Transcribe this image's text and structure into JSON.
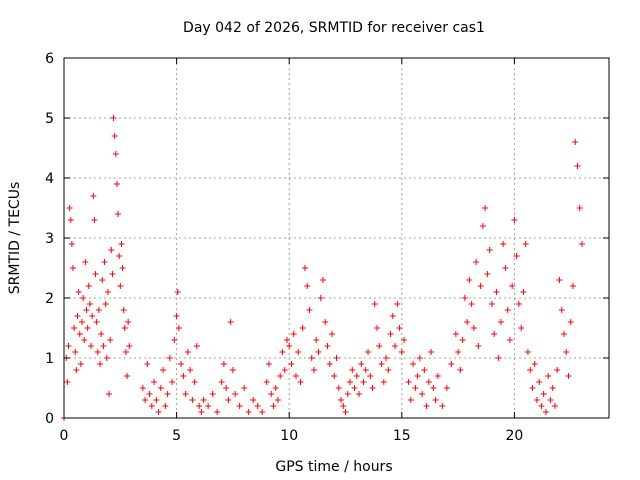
{
  "chart_data": {
    "type": "scatter",
    "title": "Day 042 of 2026, SRMTID for receiver cas1",
    "xlabel": "GPS time / hours",
    "ylabel": "SRMTID / TECUs",
    "xlim": [
      0,
      24.2
    ],
    "ylim": [
      0,
      6
    ],
    "xticks": [
      0,
      5,
      10,
      15,
      20
    ],
    "xtick_labels": [
      "0",
      "5",
      "10",
      "15",
      "20"
    ],
    "yticks": [
      0,
      1,
      2,
      3,
      4,
      5,
      6
    ],
    "ytick_labels": [
      "0",
      "1",
      "2",
      "3",
      "4",
      "5",
      "6"
    ],
    "grid": true,
    "marker": "+",
    "series_color": "#ff0000",
    "series": [
      {
        "name": "SRMTID",
        "points": [
          [
            0.0,
            0.0
          ],
          [
            0.1,
            1.0
          ],
          [
            0.15,
            0.6
          ],
          [
            0.2,
            1.2
          ],
          [
            0.25,
            3.5
          ],
          [
            0.3,
            3.3
          ],
          [
            0.35,
            2.9
          ],
          [
            0.4,
            2.5
          ],
          [
            0.45,
            1.5
          ],
          [
            0.5,
            1.1
          ],
          [
            0.55,
            0.8
          ],
          [
            0.6,
            1.7
          ],
          [
            0.65,
            2.1
          ],
          [
            0.7,
            1.4
          ],
          [
            0.75,
            0.9
          ],
          [
            0.8,
            1.6
          ],
          [
            0.85,
            2.0
          ],
          [
            0.9,
            1.3
          ],
          [
            0.95,
            2.6
          ],
          [
            1.0,
            1.8
          ],
          [
            1.05,
            1.5
          ],
          [
            1.1,
            2.2
          ],
          [
            1.15,
            1.9
          ],
          [
            1.2,
            1.2
          ],
          [
            1.25,
            1.7
          ],
          [
            1.3,
            3.7
          ],
          [
            1.35,
            3.3
          ],
          [
            1.4,
            2.4
          ],
          [
            1.45,
            1.6
          ],
          [
            1.5,
            1.1
          ],
          [
            1.55,
            1.8
          ],
          [
            1.6,
            0.9
          ],
          [
            1.65,
            1.4
          ],
          [
            1.7,
            2.3
          ],
          [
            1.75,
            1.2
          ],
          [
            1.8,
            2.6
          ],
          [
            1.85,
            1.9
          ],
          [
            1.9,
            1.0
          ],
          [
            1.95,
            2.1
          ],
          [
            2.0,
            0.4
          ],
          [
            2.05,
            1.3
          ],
          [
            2.1,
            2.8
          ],
          [
            2.15,
            2.4
          ],
          [
            2.2,
            5.0
          ],
          [
            2.25,
            4.7
          ],
          [
            2.3,
            4.4
          ],
          [
            2.35,
            3.9
          ],
          [
            2.4,
            3.4
          ],
          [
            2.45,
            2.7
          ],
          [
            2.5,
            2.2
          ],
          [
            2.55,
            2.9
          ],
          [
            2.6,
            2.5
          ],
          [
            2.65,
            1.8
          ],
          [
            2.7,
            1.5
          ],
          [
            2.75,
            1.1
          ],
          [
            2.8,
            0.7
          ],
          [
            2.85,
            1.6
          ],
          [
            2.9,
            1.2
          ],
          [
            3.5,
            0.5
          ],
          [
            3.6,
            0.3
          ],
          [
            3.7,
            0.9
          ],
          [
            3.8,
            0.4
          ],
          [
            3.9,
            0.2
          ],
          [
            4.0,
            0.6
          ],
          [
            4.1,
            0.3
          ],
          [
            4.2,
            0.1
          ],
          [
            4.3,
            0.5
          ],
          [
            4.4,
            0.8
          ],
          [
            4.5,
            0.2
          ],
          [
            4.6,
            0.4
          ],
          [
            4.7,
            1.0
          ],
          [
            4.8,
            0.6
          ],
          [
            4.9,
            1.3
          ],
          [
            5.0,
            1.7
          ],
          [
            5.05,
            2.1
          ],
          [
            5.1,
            1.5
          ],
          [
            5.2,
            0.9
          ],
          [
            5.3,
            0.7
          ],
          [
            5.4,
            0.4
          ],
          [
            5.5,
            1.1
          ],
          [
            5.6,
            0.8
          ],
          [
            5.7,
            0.3
          ],
          [
            5.8,
            0.6
          ],
          [
            5.9,
            1.2
          ],
          [
            6.0,
            0.2
          ],
          [
            6.1,
            0.1
          ],
          [
            6.2,
            0.3
          ],
          [
            6.4,
            0.2
          ],
          [
            6.6,
            0.4
          ],
          [
            6.8,
            0.1
          ],
          [
            7.0,
            0.6
          ],
          [
            7.1,
            0.9
          ],
          [
            7.2,
            0.5
          ],
          [
            7.3,
            0.3
          ],
          [
            7.4,
            1.6
          ],
          [
            7.5,
            0.8
          ],
          [
            7.6,
            0.4
          ],
          [
            7.8,
            0.2
          ],
          [
            8.0,
            0.5
          ],
          [
            8.2,
            0.1
          ],
          [
            8.4,
            0.3
          ],
          [
            8.6,
            0.2
          ],
          [
            8.8,
            0.1
          ],
          [
            9.0,
            0.6
          ],
          [
            9.1,
            0.9
          ],
          [
            9.2,
            0.4
          ],
          [
            9.3,
            0.2
          ],
          [
            9.4,
            0.5
          ],
          [
            9.5,
            0.3
          ],
          [
            9.6,
            0.7
          ],
          [
            9.7,
            1.1
          ],
          [
            9.8,
            0.8
          ],
          [
            9.9,
            1.3
          ],
          [
            10.0,
            1.2
          ],
          [
            10.1,
            0.9
          ],
          [
            10.2,
            1.4
          ],
          [
            10.3,
            0.7
          ],
          [
            10.4,
            1.1
          ],
          [
            10.5,
            0.6
          ],
          [
            10.6,
            1.5
          ],
          [
            10.7,
            2.5
          ],
          [
            10.8,
            2.2
          ],
          [
            10.9,
            1.8
          ],
          [
            11.0,
            1.0
          ],
          [
            11.1,
            0.8
          ],
          [
            11.2,
            1.3
          ],
          [
            11.3,
            1.1
          ],
          [
            11.4,
            2.0
          ],
          [
            11.5,
            2.3
          ],
          [
            11.6,
            1.6
          ],
          [
            11.7,
            1.2
          ],
          [
            11.8,
            0.9
          ],
          [
            11.9,
            1.4
          ],
          [
            12.0,
            0.7
          ],
          [
            12.1,
            1.0
          ],
          [
            12.2,
            0.5
          ],
          [
            12.3,
            0.3
          ],
          [
            12.4,
            0.2
          ],
          [
            12.5,
            0.1
          ],
          [
            12.6,
            0.4
          ],
          [
            12.7,
            0.6
          ],
          [
            12.8,
            0.8
          ],
          [
            12.9,
            0.5
          ],
          [
            13.0,
            0.7
          ],
          [
            13.1,
            0.4
          ],
          [
            13.2,
            0.9
          ],
          [
            13.3,
            0.6
          ],
          [
            13.4,
            0.8
          ],
          [
            13.5,
            1.1
          ],
          [
            13.6,
            0.7
          ],
          [
            13.7,
            0.5
          ],
          [
            13.8,
            1.9
          ],
          [
            13.9,
            1.5
          ],
          [
            14.0,
            1.2
          ],
          [
            14.1,
            0.9
          ],
          [
            14.2,
            0.6
          ],
          [
            14.3,
            1.0
          ],
          [
            14.4,
            0.8
          ],
          [
            14.5,
            1.4
          ],
          [
            14.6,
            1.7
          ],
          [
            14.7,
            1.2
          ],
          [
            14.8,
            1.9
          ],
          [
            14.9,
            1.5
          ],
          [
            15.0,
            1.1
          ],
          [
            15.1,
            1.3
          ],
          [
            15.3,
            0.6
          ],
          [
            15.4,
            0.3
          ],
          [
            15.5,
            0.9
          ],
          [
            15.6,
            0.5
          ],
          [
            15.7,
            0.7
          ],
          [
            15.8,
            1.0
          ],
          [
            15.9,
            0.4
          ],
          [
            16.0,
            0.8
          ],
          [
            16.1,
            0.2
          ],
          [
            16.2,
            0.6
          ],
          [
            16.3,
            1.1
          ],
          [
            16.4,
            0.5
          ],
          [
            16.5,
            0.3
          ],
          [
            16.6,
            0.7
          ],
          [
            16.8,
            0.2
          ],
          [
            17.0,
            0.5
          ],
          [
            17.2,
            0.9
          ],
          [
            17.4,
            1.4
          ],
          [
            17.5,
            1.1
          ],
          [
            17.6,
            0.8
          ],
          [
            17.7,
            1.3
          ],
          [
            17.8,
            2.0
          ],
          [
            17.9,
            1.6
          ],
          [
            18.0,
            2.3
          ],
          [
            18.1,
            1.9
          ],
          [
            18.2,
            1.5
          ],
          [
            18.3,
            2.6
          ],
          [
            18.4,
            1.2
          ],
          [
            18.5,
            2.2
          ],
          [
            18.6,
            3.2
          ],
          [
            18.7,
            3.5
          ],
          [
            18.8,
            2.4
          ],
          [
            18.9,
            2.8
          ],
          [
            19.0,
            1.9
          ],
          [
            19.1,
            1.4
          ],
          [
            19.2,
            2.1
          ],
          [
            19.3,
            1.0
          ],
          [
            19.4,
            1.6
          ],
          [
            19.5,
            2.9
          ],
          [
            19.6,
            2.5
          ],
          [
            19.7,
            1.8
          ],
          [
            19.8,
            1.3
          ],
          [
            19.9,
            2.2
          ],
          [
            20.0,
            3.3
          ],
          [
            20.1,
            2.7
          ],
          [
            20.2,
            1.9
          ],
          [
            20.3,
            1.5
          ],
          [
            20.4,
            2.1
          ],
          [
            20.5,
            2.9
          ],
          [
            20.6,
            1.1
          ],
          [
            20.7,
            0.8
          ],
          [
            20.8,
            0.5
          ],
          [
            20.9,
            0.9
          ],
          [
            21.0,
            0.3
          ],
          [
            21.1,
            0.6
          ],
          [
            21.2,
            0.2
          ],
          [
            21.3,
            0.4
          ],
          [
            21.4,
            0.1
          ],
          [
            21.5,
            0.7
          ],
          [
            21.6,
            0.3
          ],
          [
            21.7,
            0.5
          ],
          [
            21.8,
            0.2
          ],
          [
            21.9,
            0.8
          ],
          [
            22.0,
            2.3
          ],
          [
            22.1,
            1.8
          ],
          [
            22.2,
            1.4
          ],
          [
            22.3,
            1.1
          ],
          [
            22.4,
            0.7
          ],
          [
            22.5,
            1.6
          ],
          [
            22.6,
            2.2
          ],
          [
            22.7,
            4.6
          ],
          [
            22.8,
            4.2
          ],
          [
            22.9,
            3.5
          ],
          [
            23.0,
            2.9
          ]
        ]
      }
    ]
  }
}
